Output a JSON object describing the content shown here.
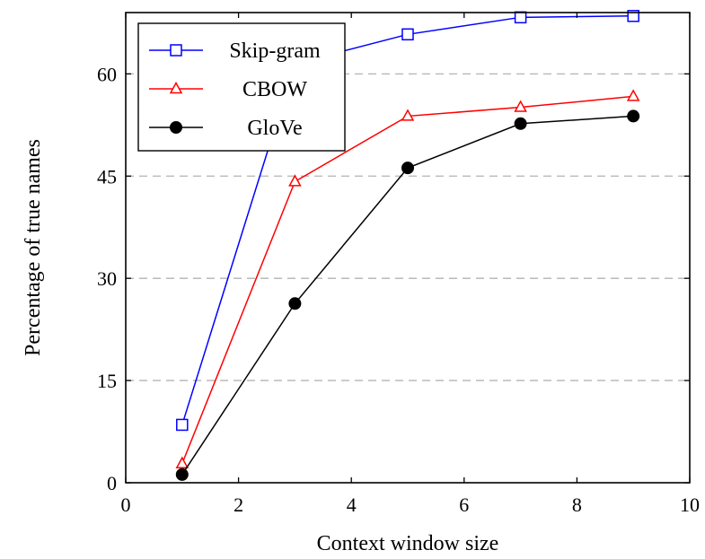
{
  "chart_data": {
    "type": "line",
    "xlabel": "Context window size",
    "ylabel": "Percentage of true names",
    "xlim": [
      0,
      10
    ],
    "ylim": [
      0,
      69
    ],
    "xticks": [
      0,
      2,
      4,
      6,
      8,
      10
    ],
    "yticks": [
      0,
      15,
      30,
      45,
      60
    ],
    "grid": "horizontal dashed",
    "legend_position": "top-left",
    "series": [
      {
        "name": "Skip-gram",
        "color": "#0000ff",
        "marker": "square-open",
        "x": [
          1,
          3,
          5,
          7,
          9
        ],
        "y": [
          8.5,
          61.5,
          65.8,
          68.3,
          68.5
        ]
      },
      {
        "name": "CBOW",
        "color": "#ff0000",
        "marker": "triangle-open",
        "x": [
          1,
          3,
          5,
          7,
          9
        ],
        "y": [
          2.8,
          44.2,
          53.8,
          55.1,
          56.7
        ]
      },
      {
        "name": "GloVe",
        "color": "#000000",
        "marker": "circle-filled",
        "x": [
          1,
          3,
          5,
          7,
          9
        ],
        "y": [
          1.2,
          26.3,
          46.2,
          52.7,
          53.8
        ]
      }
    ]
  }
}
